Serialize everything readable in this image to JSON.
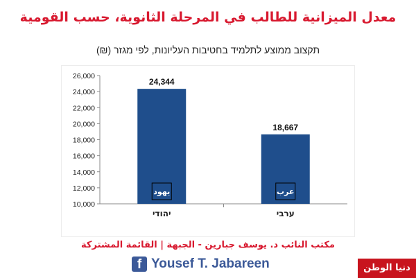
{
  "header": {
    "title": "معدل الميزانية للطالب في المرحلة الثانوية، حسب القومية",
    "subtitle": "תקצוב ממוצע לתלמיד בחטיבות העליונות, לפי מגזר (₪)"
  },
  "chart_data": {
    "type": "bar",
    "categories": [
      "יהודי",
      "ערבי"
    ],
    "values": [
      24344,
      18667
    ],
    "value_labels": [
      "24,344",
      "18,667"
    ],
    "bar_inner_labels": [
      "يهود",
      "عرب"
    ],
    "ylim": [
      10000,
      26000
    ],
    "yticks": [
      "10,000",
      "12,000",
      "14,000",
      "16,000",
      "18,000",
      "20,000",
      "22,000",
      "24,000",
      "26,000"
    ],
    "xlabel": "",
    "ylabel": "",
    "grid": false,
    "legend": "none",
    "bar_color": "#1f4e8c"
  },
  "footer": {
    "office": "مكتب النائب د. يوسف جبارين -  الجبهة | القائمة المشتركة",
    "fb_icon_letter": "f",
    "fb_name": "Yousef T. Jabareen",
    "fb_icon": "facebook-icon"
  },
  "watermark": "دنيا الوطن",
  "colors": {
    "title_red": "#d8192f",
    "bar_blue": "#1f4e8c",
    "facebook_blue": "#3b5998",
    "watermark_red": "#c8141e"
  }
}
